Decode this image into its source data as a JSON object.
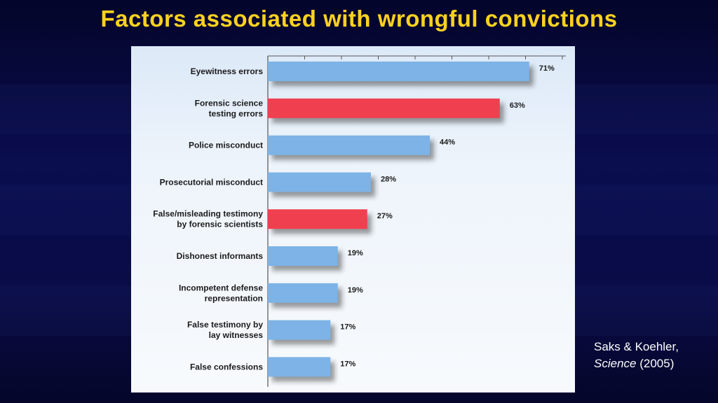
{
  "slide": {
    "title": "Factors associated with wrongful convictions",
    "citation_line1": "Saks & Koehler,",
    "citation_journal": "Science",
    "citation_year": "(2005)"
  },
  "colors": {
    "title": "#ffd21f",
    "bar_default": "#7db3e6",
    "bar_highlight": "#f0404f",
    "background": "#0a0d4e"
  },
  "chart_data": {
    "type": "bar",
    "orientation": "horizontal",
    "categories": [
      [
        "Eyewitness errors"
      ],
      [
        "Forensic science",
        "testing errors"
      ],
      [
        "Police misconduct"
      ],
      [
        "Prosecutorial misconduct"
      ],
      [
        "False/misleading testimony",
        "by forensic scientists"
      ],
      [
        "Dishonest informants"
      ],
      [
        "Incompetent defense",
        "representation"
      ],
      [
        "False testimony by",
        "lay witnesses"
      ],
      [
        "False confessions"
      ]
    ],
    "values": [
      71,
      63,
      44,
      28,
      27,
      19,
      19,
      17,
      17
    ],
    "value_labels": [
      "71%",
      "63%",
      "44%",
      "28%",
      "27%",
      "19%",
      "19%",
      "17%",
      "17%"
    ],
    "highlighted": [
      false,
      true,
      false,
      false,
      true,
      false,
      false,
      false,
      false
    ],
    "xlim": [
      0,
      80
    ],
    "grid": false,
    "title": "",
    "xlabel": "",
    "ylabel": ""
  }
}
